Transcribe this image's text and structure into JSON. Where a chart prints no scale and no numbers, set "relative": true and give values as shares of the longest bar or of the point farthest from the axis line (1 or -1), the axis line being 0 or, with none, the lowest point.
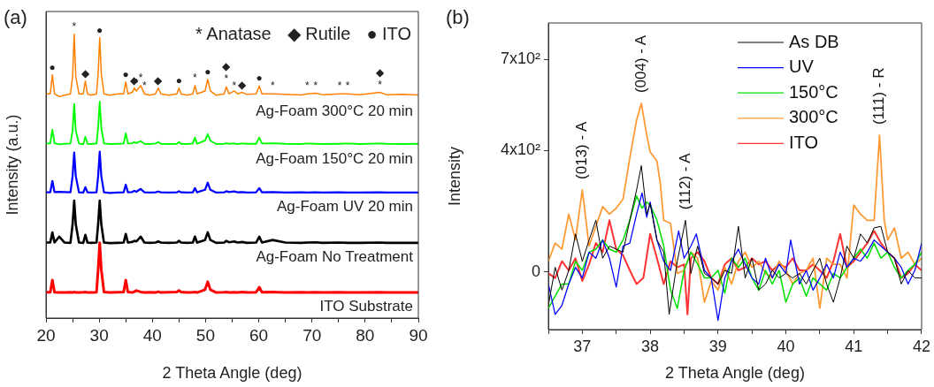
{
  "chart_data": [
    {
      "type": "line",
      "title": "(a)",
      "xlabel": "2 Theta Angle (deg)",
      "ylabel": "Intensity (a.u.)",
      "relative": true,
      "tick_labels": "x",
      "marker": "none",
      "line_style": "solid",
      "xlim": [
        20,
        90
      ],
      "xticks": [
        20,
        {
          "value": 25,
          "label": null
        },
        30,
        {
          "value": 35,
          "label": null
        },
        40,
        {
          "value": 45,
          "label": null
        },
        50,
        {
          "value": 55,
          "label": null
        },
        60,
        {
          "value": 65,
          "label": null
        },
        70,
        {
          "value": 75,
          "label": null
        },
        80,
        {
          "value": 85,
          "label": null
        },
        90
      ],
      "x": [
        20,
        20.8,
        21.2,
        21.6,
        22.5,
        23.5,
        24.6,
        25.0,
        25.3,
        25.6,
        26.2,
        27.0,
        27.4,
        27.8,
        28.5,
        29.5,
        29.8,
        30.1,
        30.4,
        30.9,
        32,
        33.5,
        34.6,
        35.0,
        35.4,
        36.2,
        36.6,
        37.0,
        37.8,
        38.5,
        39.5,
        40.6,
        41.1,
        41.6,
        43,
        44.6,
        45.0,
        45.4,
        46.5,
        47.6,
        48.0,
        48.4,
        49.9,
        50.4,
        50.9,
        52,
        53.5,
        53.9,
        54.4,
        55.4,
        56,
        56.9,
        57.8,
        59.5,
        60.1,
        60.6,
        62.6,
        65,
        68,
        69.1,
        70.7,
        72,
        75.2,
        76.7,
        79,
        82.8,
        84,
        87,
        90
      ],
      "series": [
        {
          "name": "Ag-Foam 300°C 20 min",
          "color": "#ff8000",
          "values": [
            0.79,
            0.79,
            0.857,
            0.79,
            0.78,
            0.785,
            0.79,
            0.85,
            1.0,
            0.85,
            0.79,
            0.79,
            0.835,
            0.79,
            0.785,
            0.79,
            0.86,
            0.988,
            0.86,
            0.79,
            0.785,
            0.79,
            0.79,
            0.832,
            0.79,
            0.795,
            0.81,
            0.8,
            0.819,
            0.79,
            0.785,
            0.79,
            0.81,
            0.79,
            0.785,
            0.79,
            0.81,
            0.79,
            0.785,
            0.79,
            0.819,
            0.79,
            0.8,
            0.841,
            0.8,
            0.785,
            0.79,
            0.815,
            0.79,
            0.8,
            0.79,
            0.795,
            0.788,
            0.79,
            0.818,
            0.79,
            0.79,
            0.788,
            0.786,
            0.79,
            0.792,
            0.787,
            0.79,
            0.79,
            0.787,
            0.795,
            0.787,
            0.788,
            0.786
          ]
        },
        {
          "name": "Ag-Foam 150°C 20 min",
          "color": "#00ff00",
          "values": [
            0.615,
            0.615,
            0.664,
            0.616,
            0.612,
            0.614,
            0.615,
            0.66,
            0.754,
            0.66,
            0.615,
            0.612,
            0.639,
            0.614,
            0.613,
            0.615,
            0.67,
            0.763,
            0.67,
            0.615,
            0.613,
            0.614,
            0.615,
            0.651,
            0.615,
            0.616,
            0.62,
            0.617,
            0.623,
            0.614,
            0.613,
            0.615,
            0.62,
            0.614,
            0.613,
            0.614,
            0.62,
            0.614,
            0.613,
            0.615,
            0.636,
            0.614,
            0.625,
            0.648,
            0.625,
            0.613,
            0.614,
            0.616,
            0.614,
            0.615,
            0.613,
            0.615,
            0.614,
            0.614,
            0.636,
            0.615,
            0.616,
            0.614,
            0.613,
            0.615,
            0.614,
            0.613,
            0.614,
            0.615,
            0.613,
            0.615,
            0.614,
            0.613,
            0.614
          ]
        },
        {
          "name": "Ag-Foam UV 20 min",
          "color": "#0000ff",
          "values": [
            0.443,
            0.443,
            0.483,
            0.444,
            0.445,
            0.444,
            0.443,
            0.5,
            0.583,
            0.5,
            0.443,
            0.442,
            0.461,
            0.443,
            0.442,
            0.443,
            0.5,
            0.586,
            0.5,
            0.443,
            0.441,
            0.442,
            0.443,
            0.47,
            0.443,
            0.444,
            0.448,
            0.445,
            0.455,
            0.443,
            0.442,
            0.443,
            0.446,
            0.443,
            0.442,
            0.443,
            0.447,
            0.443,
            0.442,
            0.443,
            0.458,
            0.443,
            0.452,
            0.477,
            0.452,
            0.442,
            0.443,
            0.447,
            0.444,
            0.446,
            0.443,
            0.444,
            0.442,
            0.443,
            0.458,
            0.443,
            0.444,
            0.442,
            0.443,
            0.442,
            0.443,
            0.442,
            0.443,
            0.442,
            0.442,
            0.443,
            0.442,
            0.442,
            0.442
          ]
        },
        {
          "name": "Ag-Foam No Treatment",
          "color": "#000000",
          "values": [
            0.266,
            0.266,
            0.302,
            0.266,
            0.287,
            0.266,
            0.265,
            0.33,
            0.414,
            0.33,
            0.266,
            0.265,
            0.293,
            0.266,
            0.265,
            0.266,
            0.33,
            0.414,
            0.33,
            0.266,
            0.264,
            0.265,
            0.266,
            0.296,
            0.266,
            0.268,
            0.272,
            0.27,
            0.287,
            0.266,
            0.265,
            0.266,
            0.27,
            0.266,
            0.265,
            0.266,
            0.272,
            0.266,
            0.265,
            0.266,
            0.287,
            0.266,
            0.275,
            0.302,
            0.275,
            0.265,
            0.266,
            0.272,
            0.267,
            0.27,
            0.266,
            0.268,
            0.265,
            0.266,
            0.287,
            0.266,
            0.275,
            0.266,
            0.265,
            0.266,
            0.267,
            0.265,
            0.266,
            0.265,
            0.265,
            0.266,
            0.265,
            0.265,
            0.265
          ]
        },
        {
          "name": "ITO Substrate",
          "color": "#ff0000",
          "values": [
            0.091,
            0.091,
            0.134,
            0.091,
            0.09,
            0.09,
            0.091,
            0.09,
            0.092,
            0.09,
            0.09,
            0.091,
            0.092,
            0.09,
            0.09,
            0.091,
            0.17,
            0.265,
            0.17,
            0.092,
            0.09,
            0.091,
            0.092,
            0.134,
            0.092,
            0.09,
            0.093,
            0.097,
            0.092,
            0.09,
            0.091,
            0.09,
            0.093,
            0.09,
            0.091,
            0.092,
            0.097,
            0.092,
            0.09,
            0.091,
            0.092,
            0.09,
            0.1,
            0.128,
            0.1,
            0.09,
            0.091,
            0.092,
            0.09,
            0.091,
            0.09,
            0.092,
            0.09,
            0.091,
            0.109,
            0.091,
            0.092,
            0.09,
            0.091,
            0.09,
            0.091,
            0.09,
            0.091,
            0.09,
            0.09,
            0.091,
            0.09,
            0.09,
            0.09
          ]
        }
      ],
      "annotations": [
        "* Anatase",
        "◆ Rutile",
        "● ITO",
        {
          "text": "●",
          "x": 21.2,
          "y": 0.857
        },
        {
          "text": "*",
          "x": 25.3,
          "y": 1.0
        },
        {
          "text": "◆",
          "x": 27.4,
          "y": 0.835
        },
        {
          "text": "●",
          "x": 30.1,
          "y": 0.988
        },
        {
          "text": "●",
          "x": 35.0,
          "y": 0.832
        },
        {
          "text": "◆",
          "x": 36.6,
          "y": 0.81
        },
        {
          "text": "*",
          "x": 37.0,
          "y": 0.8
        },
        {
          "text": "*",
          "x": 37.8,
          "y": 0.819
        },
        {
          "text": "*",
          "x": 38.5,
          "y": 0.79
        },
        {
          "text": "◆",
          "x": 41.1,
          "y": 0.81
        },
        {
          "text": "●",
          "x": 45.0,
          "y": 0.81
        },
        {
          "text": "*",
          "x": 48.0,
          "y": 0.819
        },
        {
          "text": "●",
          "x": 50.4,
          "y": 0.841
        },
        {
          "text": "*",
          "x": 53.9,
          "y": 0.815
        },
        {
          "text": "◆",
          "x": 53.9,
          "y": 0.815
        },
        {
          "text": "*",
          "x": 55.4,
          "y": 0.79
        },
        {
          "text": "◆",
          "x": 56.9,
          "y": 0.795
        },
        {
          "text": "●",
          "x": 60.1,
          "y": 0.818
        },
        {
          "text": "*",
          "x": 62.6,
          "y": 0.79
        },
        {
          "text": "*",
          "x": 69.1,
          "y": 0.79
        },
        {
          "text": "*",
          "x": 70.7,
          "y": 0.792
        },
        {
          "text": "*",
          "x": 75.2,
          "y": 0.79
        },
        {
          "text": "*",
          "x": 76.7,
          "y": 0.79
        },
        {
          "text": "*",
          "x": 82.8,
          "y": 0.795
        },
        {
          "text": "◆",
          "x": 82.8,
          "y": 0.795
        }
      ]
    },
    {
      "type": "line",
      "title": "(b)",
      "xlabel": "2 Theta Angle (deg)",
      "ylabel": "Intensity",
      "marker": "none",
      "line_style": "solid",
      "legend": "top right",
      "xlim": [
        36.5,
        42
      ],
      "xticks": [
        {
          "value": 36.5,
          "label": null
        },
        37,
        {
          "value": 37.5,
          "label": null
        },
        38,
        {
          "value": 38.5,
          "label": null
        },
        39,
        {
          "value": 39.5,
          "label": null
        },
        40,
        {
          "value": 40.5,
          "label": null
        },
        41,
        {
          "value": 41.5,
          "label": null
        },
        42
      ],
      "ylim": [
        -190,
        820
      ],
      "yticks": [
        0,
        {
          "value": 400,
          "label": "4x10²"
        },
        {
          "value": 700,
          "label": "7x10²"
        }
      ],
      "series": [
        {
          "name": "As DB",
          "color": "#000000",
          "x": [
            36.5,
            36.6,
            36.7,
            36.8,
            36.9,
            37.0,
            37.1,
            37.2,
            37.3,
            37.4,
            37.5,
            37.6,
            37.7,
            37.8,
            37.87,
            37.95,
            38.0,
            38.1,
            38.2,
            38.28,
            38.4,
            38.52,
            38.6,
            38.7,
            38.8,
            38.9,
            39.0,
            39.1,
            39.2,
            39.3,
            39.4,
            39.5,
            39.6,
            39.7,
            39.8,
            39.9,
            40.0,
            40.1,
            40.2,
            40.3,
            40.4,
            40.5,
            40.6,
            40.7,
            40.8,
            40.9,
            41.0,
            41.1,
            41.2,
            41.3,
            41.4,
            41.5,
            41.6,
            41.7,
            41.8,
            41.9,
            42.0
          ],
          "values": [
            -110,
            15,
            -60,
            5,
            125,
            35,
            105,
            170,
            45,
            85,
            75,
            65,
            170,
            270,
            350,
            190,
            225,
            105,
            65,
            -140,
            35,
            170,
            -5,
            85,
            -5,
            -20,
            -40,
            5,
            -5,
            150,
            -20,
            45,
            -60,
            -40,
            5,
            -20,
            -5,
            -20,
            -5,
            -40,
            5,
            45,
            -40,
            -100,
            -20,
            85,
            45,
            125,
            95,
            145,
            150,
            65,
            45,
            -40,
            5,
            -20,
            -20
          ]
        },
        {
          "name": "UV",
          "color": "#0000ff",
          "x": [
            36.5,
            36.6,
            36.7,
            36.8,
            36.9,
            37.0,
            37.1,
            37.2,
            37.3,
            37.4,
            37.5,
            37.6,
            37.7,
            37.8,
            37.88,
            37.95,
            38.0,
            38.1,
            38.2,
            38.3,
            38.42,
            38.5,
            38.6,
            38.68,
            38.8,
            38.9,
            39.0,
            39.1,
            39.2,
            39.3,
            39.4,
            39.5,
            39.6,
            39.7,
            39.8,
            39.9,
            40.0,
            40.07,
            40.2,
            40.3,
            40.4,
            40.5,
            40.6,
            40.7,
            40.8,
            40.9,
            41.0,
            41.1,
            41.2,
            41.3,
            41.4,
            41.5,
            41.6,
            41.7,
            41.8,
            41.9,
            42.0
          ],
          "values": [
            -40,
            -140,
            -110,
            -40,
            15,
            -20,
            65,
            45,
            105,
            45,
            -50,
            85,
            95,
            190,
            260,
            180,
            230,
            105,
            35,
            5,
            135,
            45,
            85,
            125,
            5,
            -20,
            -160,
            -20,
            35,
            75,
            25,
            -20,
            -40,
            45,
            -20,
            25,
            -5,
            105,
            -40,
            5,
            -60,
            -20,
            25,
            -20,
            65,
            15,
            45,
            35,
            65,
            105,
            85,
            65,
            45,
            15,
            -40,
            5,
            95
          ]
        },
        {
          "name": "150°C",
          "color": "#00e000",
          "x": [
            36.5,
            36.6,
            36.7,
            36.8,
            36.9,
            37.0,
            37.1,
            37.2,
            37.3,
            37.4,
            37.5,
            37.6,
            37.7,
            37.8,
            37.88,
            37.95,
            38.0,
            38.1,
            38.2,
            38.3,
            38.4,
            38.5,
            38.6,
            38.7,
            38.8,
            38.9,
            39.0,
            39.1,
            39.2,
            39.3,
            39.4,
            39.5,
            39.6,
            39.7,
            39.8,
            39.9,
            40.0,
            40.1,
            40.2,
            40.3,
            40.4,
            40.5,
            40.6,
            40.7,
            40.8,
            40.9,
            41.0,
            41.1,
            41.2,
            41.3,
            41.4,
            41.5,
            41.6,
            41.7,
            41.8,
            41.9,
            42.0
          ],
          "values": [
            -120,
            -80,
            -40,
            -40,
            35,
            5,
            65,
            75,
            105,
            75,
            65,
            105,
            170,
            250,
            210,
            230,
            220,
            170,
            85,
            -60,
            -120,
            5,
            65,
            25,
            -20,
            -20,
            5,
            -70,
            45,
            15,
            45,
            -20,
            -60,
            5,
            -40,
            5,
            -100,
            -40,
            -20,
            -80,
            -20,
            -40,
            -60,
            -5,
            -20,
            15,
            45,
            75,
            45,
            95,
            45,
            65,
            15,
            -20,
            5,
            25,
            65
          ]
        },
        {
          "name": "300°C",
          "color": "#ff9933",
          "x": [
            36.5,
            36.6,
            36.7,
            36.8,
            36.9,
            37.0,
            37.1,
            37.2,
            37.3,
            37.4,
            37.5,
            37.6,
            37.7,
            37.8,
            37.87,
            37.95,
            38.0,
            38.1,
            38.15,
            38.2,
            38.3,
            38.4,
            38.5,
            38.6,
            38.7,
            38.8,
            38.9,
            39.0,
            39.1,
            39.2,
            39.3,
            39.4,
            39.5,
            39.6,
            39.7,
            39.8,
            39.9,
            40.0,
            40.1,
            40.2,
            40.3,
            40.4,
            40.5,
            40.6,
            40.7,
            40.8,
            40.9,
            41.0,
            41.1,
            41.2,
            41.3,
            41.38,
            41.45,
            41.5,
            41.6,
            41.7,
            41.8,
            41.9,
            42.0
          ],
          "values": [
            35,
            95,
            75,
            190,
            105,
            270,
            85,
            150,
            215,
            190,
            210,
            240,
            375,
            500,
            555,
            450,
            395,
            365,
            290,
            170,
            160,
            -5,
            5,
            65,
            45,
            -100,
            -30,
            -60,
            15,
            -40,
            35,
            65,
            15,
            35,
            -5,
            -20,
            35,
            5,
            -40,
            -5,
            5,
            45,
            -120,
            45,
            25,
            25,
            -20,
            220,
            190,
            170,
            170,
            450,
            170,
            105,
            145,
            45,
            65,
            25,
            45
          ]
        },
        {
          "name": "ITO",
          "color": "#ff3333",
          "x": [
            36.5,
            36.6,
            36.7,
            36.8,
            36.9,
            37.0,
            37.1,
            37.2,
            37.3,
            37.4,
            37.5,
            37.6,
            37.7,
            37.8,
            37.9,
            38.0,
            38.1,
            38.2,
            38.3,
            38.4,
            38.5,
            38.55,
            38.6,
            38.7,
            38.8,
            38.9,
            39.0,
            39.1,
            39.2,
            39.3,
            39.4,
            39.5,
            39.6,
            39.7,
            39.8,
            39.9,
            40.0,
            40.1,
            40.2,
            40.3,
            40.4,
            40.5,
            40.6,
            40.7,
            40.8,
            40.9,
            41.0,
            41.1,
            41.2,
            41.3,
            41.4,
            41.5,
            41.6,
            41.7,
            41.8,
            41.9,
            42.0
          ],
          "values": [
            -5,
            -20,
            35,
            5,
            45,
            -30,
            25,
            95,
            65,
            170,
            75,
            55,
            5,
            -40,
            -20,
            125,
            45,
            -40,
            35,
            15,
            25,
            -140,
            45,
            65,
            35,
            -20,
            -40,
            25,
            45,
            5,
            15,
            45,
            25,
            35,
            5,
            25,
            15,
            45,
            5,
            5,
            25,
            5,
            -20,
            35,
            125,
            15,
            35,
            65,
            95,
            135,
            95,
            65,
            45,
            -20,
            -5,
            25,
            5
          ]
        }
      ],
      "annotations": [
        {
          "text": "(013) - A",
          "x": 37.0,
          "y": 270
        },
        {
          "text": "(004) - A",
          "x": 37.87,
          "y": 555
        },
        {
          "text": "(112) - A",
          "x": 38.52,
          "y": 170
        },
        {
          "text": "(111) - R",
          "x": 41.38,
          "y": 450
        }
      ]
    }
  ]
}
